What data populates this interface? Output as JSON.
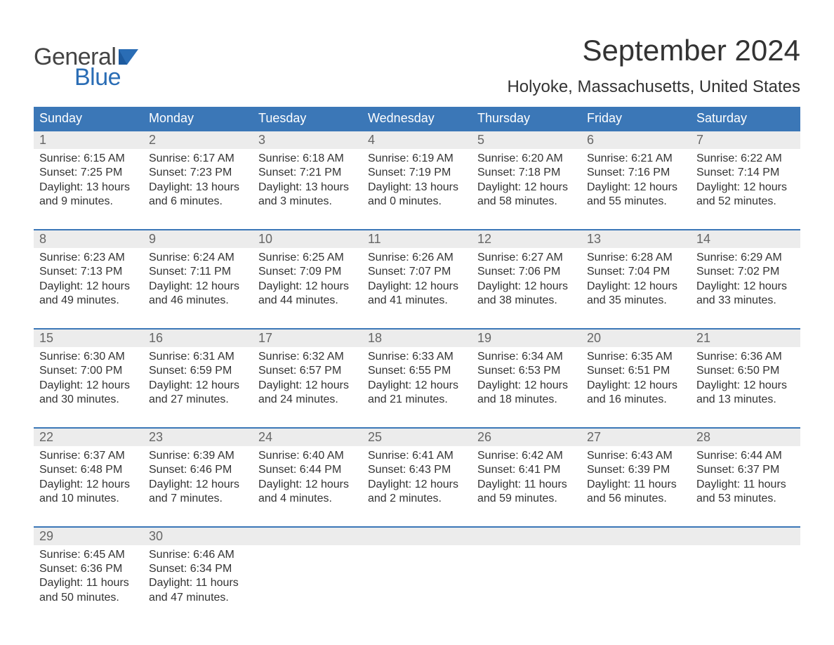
{
  "brand": {
    "word1": "General",
    "word2": "Blue",
    "accent_color": "#2a6db5"
  },
  "title": "September 2024",
  "location": "Holyoke, Massachusetts, United States",
  "colors": {
    "header_bg": "#3b77b7",
    "header_text": "#ffffff",
    "daynum_bg": "#ececec",
    "daynum_text": "#666666",
    "body_text": "#333333",
    "week_border": "#3b77b7",
    "page_bg": "#ffffff"
  },
  "day_names": [
    "Sunday",
    "Monday",
    "Tuesday",
    "Wednesday",
    "Thursday",
    "Friday",
    "Saturday"
  ],
  "weeks": [
    [
      {
        "n": "1",
        "sr": "Sunrise: 6:15 AM",
        "ss": "Sunset: 7:25 PM",
        "d1": "Daylight: 13 hours",
        "d2": "and 9 minutes."
      },
      {
        "n": "2",
        "sr": "Sunrise: 6:17 AM",
        "ss": "Sunset: 7:23 PM",
        "d1": "Daylight: 13 hours",
        "d2": "and 6 minutes."
      },
      {
        "n": "3",
        "sr": "Sunrise: 6:18 AM",
        "ss": "Sunset: 7:21 PM",
        "d1": "Daylight: 13 hours",
        "d2": "and 3 minutes."
      },
      {
        "n": "4",
        "sr": "Sunrise: 6:19 AM",
        "ss": "Sunset: 7:19 PM",
        "d1": "Daylight: 13 hours",
        "d2": "and 0 minutes."
      },
      {
        "n": "5",
        "sr": "Sunrise: 6:20 AM",
        "ss": "Sunset: 7:18 PM",
        "d1": "Daylight: 12 hours",
        "d2": "and 58 minutes."
      },
      {
        "n": "6",
        "sr": "Sunrise: 6:21 AM",
        "ss": "Sunset: 7:16 PM",
        "d1": "Daylight: 12 hours",
        "d2": "and 55 minutes."
      },
      {
        "n": "7",
        "sr": "Sunrise: 6:22 AM",
        "ss": "Sunset: 7:14 PM",
        "d1": "Daylight: 12 hours",
        "d2": "and 52 minutes."
      }
    ],
    [
      {
        "n": "8",
        "sr": "Sunrise: 6:23 AM",
        "ss": "Sunset: 7:13 PM",
        "d1": "Daylight: 12 hours",
        "d2": "and 49 minutes."
      },
      {
        "n": "9",
        "sr": "Sunrise: 6:24 AM",
        "ss": "Sunset: 7:11 PM",
        "d1": "Daylight: 12 hours",
        "d2": "and 46 minutes."
      },
      {
        "n": "10",
        "sr": "Sunrise: 6:25 AM",
        "ss": "Sunset: 7:09 PM",
        "d1": "Daylight: 12 hours",
        "d2": "and 44 minutes."
      },
      {
        "n": "11",
        "sr": "Sunrise: 6:26 AM",
        "ss": "Sunset: 7:07 PM",
        "d1": "Daylight: 12 hours",
        "d2": "and 41 minutes."
      },
      {
        "n": "12",
        "sr": "Sunrise: 6:27 AM",
        "ss": "Sunset: 7:06 PM",
        "d1": "Daylight: 12 hours",
        "d2": "and 38 minutes."
      },
      {
        "n": "13",
        "sr": "Sunrise: 6:28 AM",
        "ss": "Sunset: 7:04 PM",
        "d1": "Daylight: 12 hours",
        "d2": "and 35 minutes."
      },
      {
        "n": "14",
        "sr": "Sunrise: 6:29 AM",
        "ss": "Sunset: 7:02 PM",
        "d1": "Daylight: 12 hours",
        "d2": "and 33 minutes."
      }
    ],
    [
      {
        "n": "15",
        "sr": "Sunrise: 6:30 AM",
        "ss": "Sunset: 7:00 PM",
        "d1": "Daylight: 12 hours",
        "d2": "and 30 minutes."
      },
      {
        "n": "16",
        "sr": "Sunrise: 6:31 AM",
        "ss": "Sunset: 6:59 PM",
        "d1": "Daylight: 12 hours",
        "d2": "and 27 minutes."
      },
      {
        "n": "17",
        "sr": "Sunrise: 6:32 AM",
        "ss": "Sunset: 6:57 PM",
        "d1": "Daylight: 12 hours",
        "d2": "and 24 minutes."
      },
      {
        "n": "18",
        "sr": "Sunrise: 6:33 AM",
        "ss": "Sunset: 6:55 PM",
        "d1": "Daylight: 12 hours",
        "d2": "and 21 minutes."
      },
      {
        "n": "19",
        "sr": "Sunrise: 6:34 AM",
        "ss": "Sunset: 6:53 PM",
        "d1": "Daylight: 12 hours",
        "d2": "and 18 minutes."
      },
      {
        "n": "20",
        "sr": "Sunrise: 6:35 AM",
        "ss": "Sunset: 6:51 PM",
        "d1": "Daylight: 12 hours",
        "d2": "and 16 minutes."
      },
      {
        "n": "21",
        "sr": "Sunrise: 6:36 AM",
        "ss": "Sunset: 6:50 PM",
        "d1": "Daylight: 12 hours",
        "d2": "and 13 minutes."
      }
    ],
    [
      {
        "n": "22",
        "sr": "Sunrise: 6:37 AM",
        "ss": "Sunset: 6:48 PM",
        "d1": "Daylight: 12 hours",
        "d2": "and 10 minutes."
      },
      {
        "n": "23",
        "sr": "Sunrise: 6:39 AM",
        "ss": "Sunset: 6:46 PM",
        "d1": "Daylight: 12 hours",
        "d2": "and 7 minutes."
      },
      {
        "n": "24",
        "sr": "Sunrise: 6:40 AM",
        "ss": "Sunset: 6:44 PM",
        "d1": "Daylight: 12 hours",
        "d2": "and 4 minutes."
      },
      {
        "n": "25",
        "sr": "Sunrise: 6:41 AM",
        "ss": "Sunset: 6:43 PM",
        "d1": "Daylight: 12 hours",
        "d2": "and 2 minutes."
      },
      {
        "n": "26",
        "sr": "Sunrise: 6:42 AM",
        "ss": "Sunset: 6:41 PM",
        "d1": "Daylight: 11 hours",
        "d2": "and 59 minutes."
      },
      {
        "n": "27",
        "sr": "Sunrise: 6:43 AM",
        "ss": "Sunset: 6:39 PM",
        "d1": "Daylight: 11 hours",
        "d2": "and 56 minutes."
      },
      {
        "n": "28",
        "sr": "Sunrise: 6:44 AM",
        "ss": "Sunset: 6:37 PM",
        "d1": "Daylight: 11 hours",
        "d2": "and 53 minutes."
      }
    ],
    [
      {
        "n": "29",
        "sr": "Sunrise: 6:45 AM",
        "ss": "Sunset: 6:36 PM",
        "d1": "Daylight: 11 hours",
        "d2": "and 50 minutes."
      },
      {
        "n": "30",
        "sr": "Sunrise: 6:46 AM",
        "ss": "Sunset: 6:34 PM",
        "d1": "Daylight: 11 hours",
        "d2": "and 47 minutes."
      },
      {
        "empty": true
      },
      {
        "empty": true
      },
      {
        "empty": true
      },
      {
        "empty": true
      },
      {
        "empty": true
      }
    ]
  ]
}
